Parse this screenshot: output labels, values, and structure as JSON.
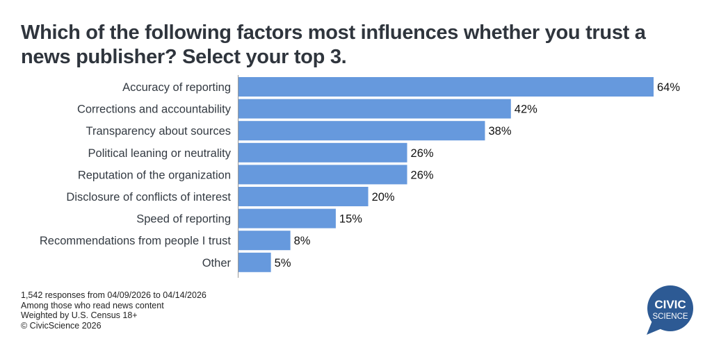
{
  "chart_data": {
    "type": "bar",
    "orientation": "horizontal",
    "title": "Which of the following factors most influences whether you trust a news publisher? Select your top 3.",
    "categories": [
      "Accuracy of reporting",
      "Corrections and accountability",
      "Transparency about sources",
      "Political leaning or neutrality",
      "Reputation of the organization",
      "Disclosure of conflicts of interest",
      "Speed of reporting",
      "Recommendations from people I trust",
      "Other"
    ],
    "values": [
      64,
      42,
      38,
      26,
      26,
      20,
      15,
      8,
      5
    ],
    "data_labels": [
      "64%",
      "42%",
      "38%",
      "26%",
      "26%",
      "20%",
      "15%",
      "8%",
      "5%"
    ],
    "xlabel": "",
    "ylabel": "",
    "xlim": [
      0,
      64
    ],
    "grid": false,
    "bar_color": "#6699dd"
  },
  "footer": {
    "lines": [
      "1,542 responses from 04/09/2026 to 04/14/2026",
      "Among those who read news content",
      "Weighted by U.S. Census 18+",
      "© CivicScience 2026"
    ]
  },
  "logo": {
    "line1": "CIVIC",
    "line2": "SCIENCE",
    "color": "#2d5a94"
  }
}
